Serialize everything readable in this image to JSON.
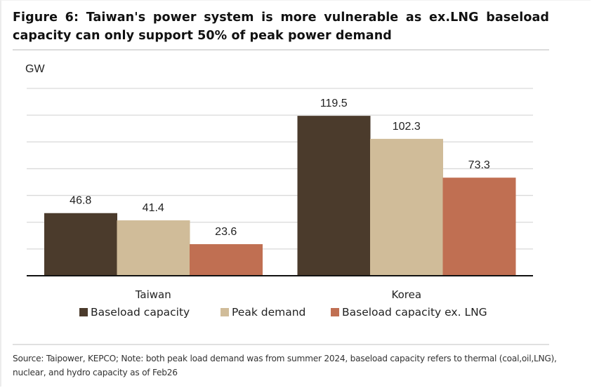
{
  "figure": {
    "title": "Figure 6: Taiwan's power system is more vulnerable as ex.LNG baseload capacity can only support 50% of peak power demand",
    "unit_label": "GW",
    "footer": "Source: Taipower, KEPCO; Note: both peak load demand was from summer 2024, baseload capacity refers to thermal (coal,oil,LNG), nuclear, and hydro capacity as of Feb26"
  },
  "chart_data": {
    "type": "bar",
    "title": "Figure 6: Taiwan's power system is more vulnerable as ex.LNG baseload capacity can only support 50% of peak power demand",
    "xlabel": "",
    "ylabel": "GW",
    "categories": [
      "Taiwan",
      "Korea"
    ],
    "series": [
      {
        "name": "Baseload capacity",
        "color": "#4B3B2C",
        "values": [
          46.8,
          119.5
        ],
        "labels": [
          "46.8",
          "119.5"
        ]
      },
      {
        "name": "Peak demand",
        "color": "#D0BC99",
        "values": [
          41.4,
          102.3
        ],
        "labels": [
          "41.4",
          "102.3"
        ]
      },
      {
        "name": "Baseload capacity ex. LNG",
        "color": "#C06F52",
        "values": [
          23.6,
          73.3
        ],
        "labels": [
          "23.6",
          "73.3"
        ]
      }
    ],
    "ylim": [
      0,
      140
    ],
    "gridlines": [
      20,
      40,
      60,
      80,
      100,
      120,
      140
    ],
    "grid": true,
    "yaxis_tick_labels_shown": false,
    "legend_position": "bottom"
  }
}
